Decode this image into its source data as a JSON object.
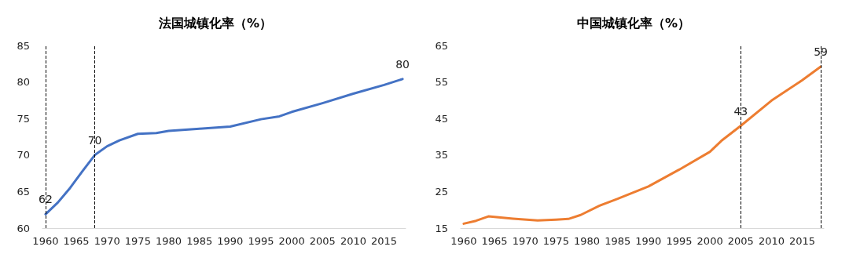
{
  "chart_data": [
    {
      "type": "line",
      "title": "法国城镇化率（%）",
      "x": [
        1960,
        1962,
        1964,
        1966,
        1968,
        1970,
        1972,
        1975,
        1978,
        1980,
        1985,
        1990,
        1995,
        1998,
        2000,
        2005,
        2010,
        2015,
        2018
      ],
      "series": [
        {
          "color": "#4472c4",
          "values": [
            61.9,
            63.5,
            65.5,
            67.8,
            70.0,
            71.2,
            72.0,
            72.9,
            73.0,
            73.3,
            73.6,
            73.9,
            74.9,
            75.3,
            75.9,
            77.1,
            78.4,
            79.6,
            80.4
          ]
        }
      ],
      "xlim": [
        1959.5,
        2018.5
      ],
      "xticks": [
        1960,
        1965,
        1970,
        1975,
        1980,
        1985,
        1990,
        1995,
        2000,
        2005,
        2010,
        2015
      ],
      "ylim": [
        60,
        85
      ],
      "yticks": [
        60,
        65,
        70,
        75,
        80,
        85
      ],
      "ref_lines": [
        {
          "axis": "x",
          "value": 1960,
          "color": "#000000",
          "line_style": "dashed"
        },
        {
          "axis": "x",
          "value": 1968,
          "color": "#000000",
          "line_style": "dashed"
        }
      ],
      "annotations": [
        {
          "text": "62",
          "x": 1960,
          "y": 61.9
        },
        {
          "text": "70",
          "x": 1968,
          "y": 70.0
        },
        {
          "text": "80",
          "x": 2018,
          "y": 80.4
        }
      ],
      "grid": false,
      "marker": "none",
      "line_style": "solid"
    },
    {
      "type": "line",
      "title": "中国城镇化率（%）",
      "x": [
        1960,
        1962,
        1964,
        1968,
        1972,
        1975,
        1977,
        1979,
        1982,
        1985,
        1990,
        1995,
        2000,
        2002,
        2005,
        2010,
        2015,
        2018
      ],
      "series": [
        {
          "color": "#ed7d31",
          "values": [
            16.2,
            17.0,
            18.2,
            17.6,
            17.1,
            17.3,
            17.5,
            18.6,
            21.1,
            23.0,
            26.4,
            31.0,
            35.9,
            39.1,
            43.0,
            49.9,
            55.5,
            59.2
          ]
        }
      ],
      "xlim": [
        1959.5,
        2018.5
      ],
      "xticks": [
        1960,
        1965,
        1970,
        1975,
        1980,
        1985,
        1990,
        1995,
        2000,
        2005,
        2010,
        2015
      ],
      "ylim": [
        15,
        65
      ],
      "yticks": [
        15,
        25,
        35,
        45,
        55,
        65
      ],
      "ref_lines": [
        {
          "axis": "x",
          "value": 2005,
          "color": "#000000",
          "line_style": "dashed"
        },
        {
          "axis": "x",
          "value": 2018,
          "color": "#000000",
          "line_style": "dashed"
        }
      ],
      "annotations": [
        {
          "text": "43",
          "x": 2005,
          "y": 43.0
        },
        {
          "text": "59",
          "x": 2018,
          "y": 59.2
        }
      ],
      "grid": false,
      "marker": "none",
      "line_style": "solid"
    }
  ]
}
